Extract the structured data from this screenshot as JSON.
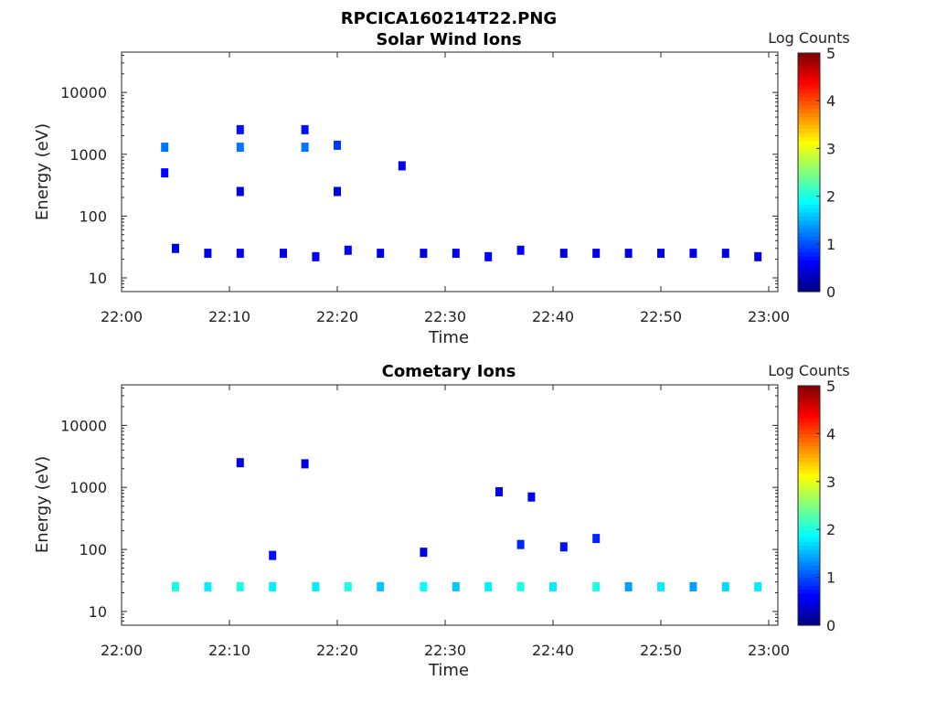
{
  "figure": {
    "title": "RPCICA160214T22.PNG",
    "colors": {
      "axis": "#262626",
      "colormap": [
        "#00007f",
        "#0000ff",
        "#007fff",
        "#00ffff",
        "#7fff7f",
        "#ffff00",
        "#ff7f00",
        "#ff0000",
        "#7f0000"
      ]
    }
  },
  "chart_data": [
    {
      "type": "heatmap",
      "title": "Solar Wind Ions",
      "xlabel": "Time",
      "ylabel": "Energy (eV)",
      "x_ticks": [
        "22:00",
        "22:10",
        "22:20",
        "22:30",
        "22:40",
        "22:50",
        "23:00"
      ],
      "xlim": [
        "22:00",
        "23:00"
      ],
      "y_scale": "log",
      "y_ticks": [
        "10",
        "100",
        "1000",
        "10000"
      ],
      "ylim": [
        6,
        45000
      ],
      "colorbar": {
        "label": "Log Counts",
        "range": [
          0,
          5
        ],
        "ticks": [
          "0",
          "1",
          "2",
          "3",
          "4",
          "5"
        ]
      },
      "cells": [
        [
          "22:04",
          1300,
          1.2
        ],
        [
          "22:04",
          500,
          0.6
        ],
        [
          "22:11",
          1300,
          1.2
        ],
        [
          "22:11",
          2500,
          0.7
        ],
        [
          "22:11",
          250,
          0.5
        ],
        [
          "22:17",
          1300,
          1.2
        ],
        [
          "22:17",
          2500,
          0.7
        ],
        [
          "22:20",
          1400,
          0.9
        ],
        [
          "22:20",
          250,
          0.5
        ],
        [
          "22:26",
          650,
          0.5
        ],
        [
          "22:05",
          30,
          0.5
        ],
        [
          "22:08",
          25,
          0.5
        ],
        [
          "22:11",
          25,
          0.6
        ],
        [
          "22:15",
          25,
          0.5
        ],
        [
          "22:18",
          22,
          0.6
        ],
        [
          "22:21",
          28,
          0.6
        ],
        [
          "22:24",
          25,
          0.5
        ],
        [
          "22:28",
          25,
          0.5
        ],
        [
          "22:31",
          25,
          0.5
        ],
        [
          "22:34",
          22,
          0.6
        ],
        [
          "22:37",
          28,
          0.6
        ],
        [
          "22:41",
          25,
          0.5
        ],
        [
          "22:44",
          25,
          0.5
        ],
        [
          "22:47",
          25,
          0.5
        ],
        [
          "22:50",
          25,
          0.5
        ],
        [
          "22:53",
          25,
          0.5
        ],
        [
          "22:56",
          25,
          0.5
        ],
        [
          "22:59",
          22,
          0.5
        ]
      ]
    },
    {
      "type": "heatmap",
      "title": "Cometary Ions",
      "xlabel": "Time",
      "ylabel": "Energy (eV)",
      "x_ticks": [
        "22:00",
        "22:10",
        "22:20",
        "22:30",
        "22:40",
        "22:50",
        "23:00"
      ],
      "xlim": [
        "22:00",
        "23:00"
      ],
      "y_scale": "log",
      "y_ticks": [
        "10",
        "100",
        "1000",
        "10000"
      ],
      "ylim": [
        6,
        45000
      ],
      "colorbar": {
        "label": "Log Counts",
        "range": [
          0,
          5
        ],
        "ticks": [
          "0",
          "1",
          "2",
          "3",
          "4",
          "5"
        ]
      },
      "cells": [
        [
          "22:05",
          25,
          2.0
        ],
        [
          "22:08",
          25,
          1.8
        ],
        [
          "22:11",
          25,
          2.0
        ],
        [
          "22:14",
          25,
          1.8
        ],
        [
          "22:18",
          25,
          1.8
        ],
        [
          "22:21",
          25,
          2.0
        ],
        [
          "22:24",
          25,
          1.6
        ],
        [
          "22:28",
          25,
          1.9
        ],
        [
          "22:31",
          25,
          1.6
        ],
        [
          "22:34",
          25,
          1.8
        ],
        [
          "22:37",
          25,
          2.0
        ],
        [
          "22:40",
          25,
          1.8
        ],
        [
          "22:44",
          25,
          2.0
        ],
        [
          "22:47",
          25,
          1.4
        ],
        [
          "22:50",
          25,
          1.8
        ],
        [
          "22:53",
          25,
          1.4
        ],
        [
          "22:56",
          25,
          1.7
        ],
        [
          "22:59",
          25,
          1.8
        ],
        [
          "22:11",
          2500,
          0.5
        ],
        [
          "22:17",
          2400,
          0.5
        ],
        [
          "22:35",
          850,
          0.5
        ],
        [
          "22:38",
          700,
          0.6
        ],
        [
          "22:14",
          80,
          0.7
        ],
        [
          "22:28",
          90,
          0.6
        ],
        [
          "22:37",
          120,
          0.8
        ],
        [
          "22:41",
          110,
          0.7
        ],
        [
          "22:44",
          150,
          0.8
        ]
      ]
    }
  ]
}
